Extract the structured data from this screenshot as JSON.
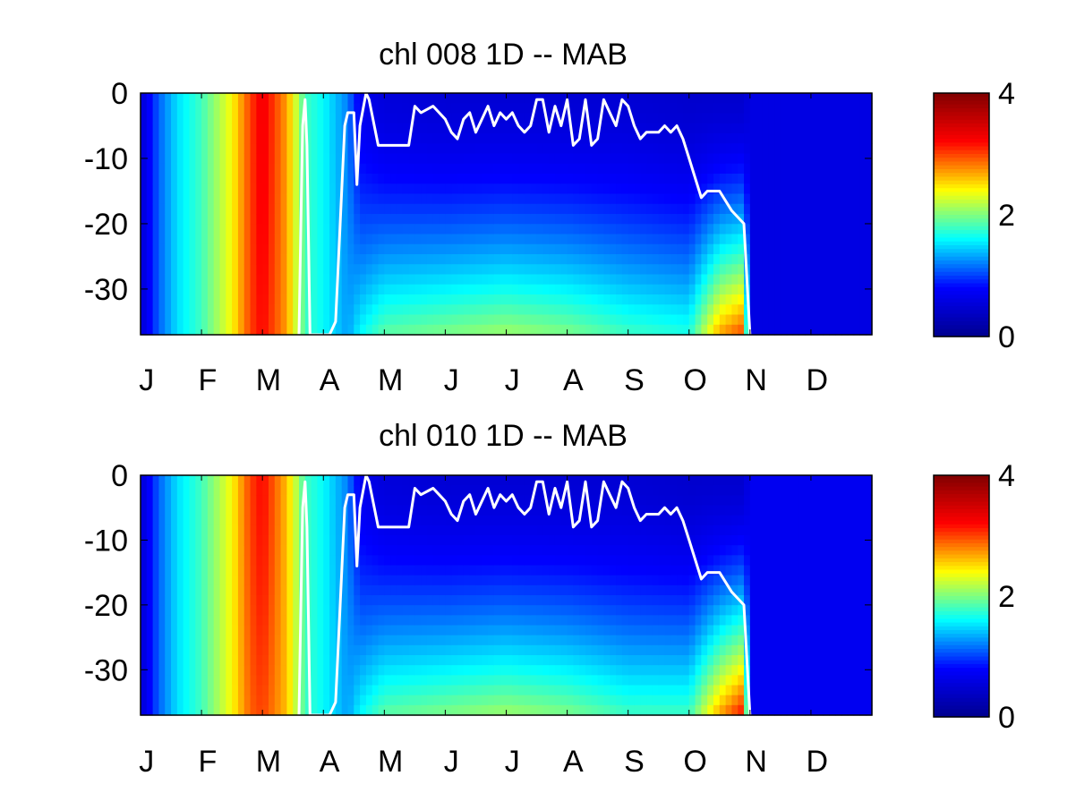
{
  "colormap": {
    "name": "jet",
    "stops": [
      "#00008f",
      "#0000ff",
      "#00ffff",
      "#ffff00",
      "#ff0000",
      "#800000"
    ]
  },
  "line_color": "#ffffff",
  "chart_data": [
    {
      "type": "heatmap",
      "title": "chl  008 1D   -- MAB",
      "xlabel": "",
      "ylabel": "",
      "x_tick_labels": [
        "J",
        "F",
        "M",
        "A",
        "M",
        "J",
        "J",
        "A",
        "S",
        "O",
        "N",
        "D"
      ],
      "y_tick_labels": [
        "0",
        "-10",
        "-20",
        "-30"
      ],
      "y_ticks": [
        0,
        -10,
        -20,
        -30
      ],
      "ylim": [
        -37,
        0
      ],
      "xlim": [
        0,
        12
      ],
      "colorbar": {
        "ticks": [
          "0",
          "2",
          "4"
        ],
        "range": [
          0,
          4
        ]
      },
      "field_description_points": {
        "months": [
          0,
          0.3,
          0.6,
          1.0,
          1.5,
          1.8,
          2.0,
          2.4,
          2.7,
          3.0,
          3.4,
          3.6,
          4.0,
          5.0,
          6.0,
          7.0,
          8.0,
          9.0,
          9.5,
          9.9,
          10.0,
          11.0,
          12.0
        ],
        "surface_value": [
          0.5,
          1.1,
          1.5,
          1.8,
          2.4,
          3.0,
          3.3,
          2.7,
          1.8,
          1.6,
          1.2,
          0.7,
          0.55,
          0.5,
          0.5,
          0.5,
          0.5,
          0.45,
          0.45,
          0.45,
          0.6,
          0.6,
          0.6
        ],
        "bottom_value": [
          0.5,
          1.1,
          1.5,
          1.8,
          2.4,
          3.0,
          3.2,
          2.7,
          1.8,
          1.6,
          1.3,
          1.6,
          1.9,
          2.0,
          2.1,
          2.0,
          1.8,
          1.7,
          2.7,
          3.0,
          0.6,
          0.6,
          0.6
        ]
      },
      "mixed_layer_line": {
        "months": [
          2.6,
          2.63,
          2.66,
          2.7,
          2.73,
          2.78,
          2.8,
          3.1,
          3.2,
          3.35,
          3.4,
          3.5,
          3.55,
          3.6,
          3.7,
          3.75,
          3.9,
          4.0,
          4.05,
          4.2,
          4.4,
          4.5,
          4.6,
          4.8,
          4.9,
          5.0,
          5.1,
          5.2,
          5.3,
          5.4,
          5.5,
          5.6,
          5.7,
          5.8,
          5.9,
          6.0,
          6.1,
          6.2,
          6.3,
          6.4,
          6.5,
          6.6,
          6.7,
          6.8,
          6.9,
          7.0,
          7.1,
          7.2,
          7.3,
          7.4,
          7.5,
          7.6,
          7.7,
          7.8,
          7.9,
          8.0,
          8.1,
          8.2,
          8.3,
          8.4,
          8.5,
          8.6,
          8.7,
          8.8,
          8.9,
          9.0,
          9.2,
          9.3,
          9.5,
          9.7,
          9.9,
          10.0
        ],
        "depths": [
          -37,
          -20,
          -5,
          -1,
          -8,
          -37,
          -37,
          -37,
          -35,
          -5,
          -3,
          -3,
          -14,
          -5,
          0,
          -1,
          -8,
          -8,
          -8,
          -8,
          -8,
          -2,
          -3,
          -2,
          -3,
          -4,
          -6,
          -7,
          -4,
          -3,
          -6,
          -4,
          -2,
          -5,
          -3,
          -4,
          -3,
          -5,
          -6,
          -5,
          -1,
          -1,
          -6,
          -2,
          -5,
          -1,
          -8,
          -7,
          -1,
          -8,
          -7,
          -1,
          -3,
          -5,
          -1,
          -2,
          -5,
          -7,
          -6,
          -6,
          -6,
          -5,
          -6,
          -5,
          -7,
          -10,
          -16,
          -15,
          -15,
          -18,
          -20,
          -37
        ]
      }
    },
    {
      "type": "heatmap",
      "title": "chl  010 1D   -- MAB",
      "xlabel": "",
      "ylabel": "",
      "x_tick_labels": [
        "J",
        "F",
        "M",
        "A",
        "M",
        "J",
        "J",
        "A",
        "S",
        "O",
        "N",
        "D"
      ],
      "y_tick_labels": [
        "0",
        "-10",
        "-20",
        "-30"
      ],
      "y_ticks": [
        0,
        -10,
        -20,
        -30
      ],
      "ylim": [
        -37,
        0
      ],
      "xlim": [
        0,
        12
      ],
      "colorbar": {
        "ticks": [
          "0",
          "2",
          "4"
        ],
        "range": [
          0,
          4
        ]
      },
      "field_description_points": {
        "months": [
          0,
          0.3,
          0.6,
          1.0,
          1.5,
          1.8,
          2.0,
          2.4,
          2.7,
          3.0,
          3.4,
          3.6,
          4.0,
          5.0,
          6.0,
          7.0,
          8.0,
          9.0,
          9.5,
          9.9,
          10.0,
          11.0,
          12.0
        ],
        "surface_value": [
          0.5,
          1.1,
          1.5,
          1.8,
          2.4,
          3.0,
          3.2,
          2.6,
          1.8,
          1.6,
          1.2,
          0.7,
          0.55,
          0.5,
          0.5,
          0.5,
          0.5,
          0.45,
          0.45,
          0.45,
          0.7,
          0.7,
          0.7
        ],
        "bottom_value": [
          0.5,
          1.1,
          1.5,
          1.8,
          2.4,
          2.9,
          3.0,
          2.6,
          1.8,
          1.6,
          1.3,
          1.6,
          1.9,
          2.0,
          2.1,
          2.0,
          1.8,
          1.8,
          2.7,
          3.2,
          0.7,
          0.7,
          0.7
        ]
      },
      "mixed_layer_line": {
        "months": [
          2.6,
          2.63,
          2.66,
          2.7,
          2.73,
          2.78,
          2.8,
          3.1,
          3.2,
          3.35,
          3.4,
          3.5,
          3.55,
          3.6,
          3.7,
          3.75,
          3.9,
          4.0,
          4.05,
          4.2,
          4.4,
          4.5,
          4.6,
          4.8,
          4.9,
          5.0,
          5.1,
          5.2,
          5.3,
          5.4,
          5.5,
          5.6,
          5.7,
          5.8,
          5.9,
          6.0,
          6.1,
          6.2,
          6.3,
          6.4,
          6.5,
          6.6,
          6.7,
          6.8,
          6.9,
          7.0,
          7.1,
          7.2,
          7.3,
          7.4,
          7.5,
          7.6,
          7.7,
          7.8,
          7.9,
          8.0,
          8.1,
          8.2,
          8.3,
          8.4,
          8.5,
          8.6,
          8.7,
          8.8,
          8.9,
          9.0,
          9.2,
          9.3,
          9.5,
          9.7,
          9.9,
          10.0
        ],
        "depths": [
          -37,
          -20,
          -5,
          -1,
          -8,
          -37,
          -37,
          -37,
          -35,
          -5,
          -3,
          -3,
          -14,
          -5,
          0,
          -1,
          -8,
          -8,
          -8,
          -8,
          -8,
          -2,
          -3,
          -2,
          -3,
          -4,
          -6,
          -7,
          -4,
          -3,
          -6,
          -4,
          -2,
          -5,
          -3,
          -4,
          -3,
          -5,
          -6,
          -5,
          -1,
          -1,
          -6,
          -2,
          -5,
          -1,
          -8,
          -7,
          -1,
          -8,
          -7,
          -1,
          -3,
          -5,
          -1,
          -2,
          -5,
          -7,
          -6,
          -6,
          -6,
          -5,
          -6,
          -5,
          -7,
          -10,
          -16,
          -15,
          -15,
          -18,
          -20,
          -37
        ]
      }
    }
  ]
}
